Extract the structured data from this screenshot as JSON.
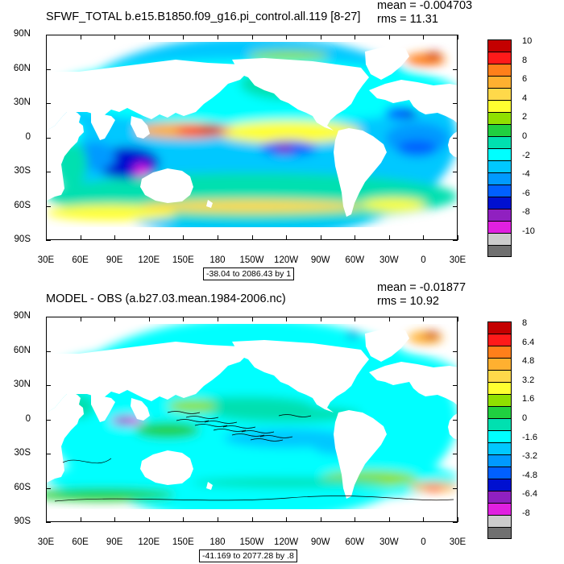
{
  "panels": [
    {
      "title": "SFWF_TOTAL b.e15.B1850.f09_g16.pi_control.all.119 [8-27]",
      "mean": "mean = -0.004703",
      "rms": "rms = 11.31",
      "contour_info": "-38.04 to 2086.43 by 1",
      "colorbar_labels": [
        "10",
        "8",
        "6",
        "4",
        "2",
        "0",
        "-2",
        "-4",
        "-6",
        "-8",
        "-10"
      ],
      "colors": [
        "#c40000",
        "#ff1a1a",
        "#ff7f1a",
        "#ffb030",
        "#ffd94a",
        "#ffff30",
        "#90e000",
        "#20d040",
        "#00e0b0",
        "#00ffff",
        "#00c8ff",
        "#009aff",
        "#0060ff",
        "#0010d0",
        "#9020c0",
        "#e020e0",
        "#cccccc",
        "#707070"
      ],
      "field": "freshwater flux"
    },
    {
      "title": "MODEL - OBS (a.b27.03.mean.1984-2006.nc)",
      "mean": "mean = -0.01877",
      "rms": "rms = 10.92",
      "contour_info": "-41.169 to 2077.28 by .8",
      "colorbar_labels": [
        "8",
        "6.4",
        "4.8",
        "3.2",
        "1.6",
        "0",
        "-1.6",
        "-3.2",
        "-4.8",
        "-6.4",
        "-8"
      ],
      "colors": [
        "#c40000",
        "#ff1a1a",
        "#ff7f1a",
        "#ffb030",
        "#ffd94a",
        "#ffff30",
        "#90e000",
        "#20d040",
        "#00e0b0",
        "#00ffff",
        "#00c8ff",
        "#009aff",
        "#0060ff",
        "#0010d0",
        "#9020c0",
        "#e020e0",
        "#cccccc",
        "#707070"
      ],
      "field": "difference"
    }
  ],
  "lat_labels": [
    "90N",
    "60N",
    "30N",
    "0",
    "30S",
    "60S",
    "90S"
  ],
  "lon_labels": [
    "30E",
    "60E",
    "90E",
    "120E",
    "150E",
    "180",
    "150W",
    "120W",
    "90W",
    "60W",
    "30W",
    "0",
    "30E"
  ]
}
